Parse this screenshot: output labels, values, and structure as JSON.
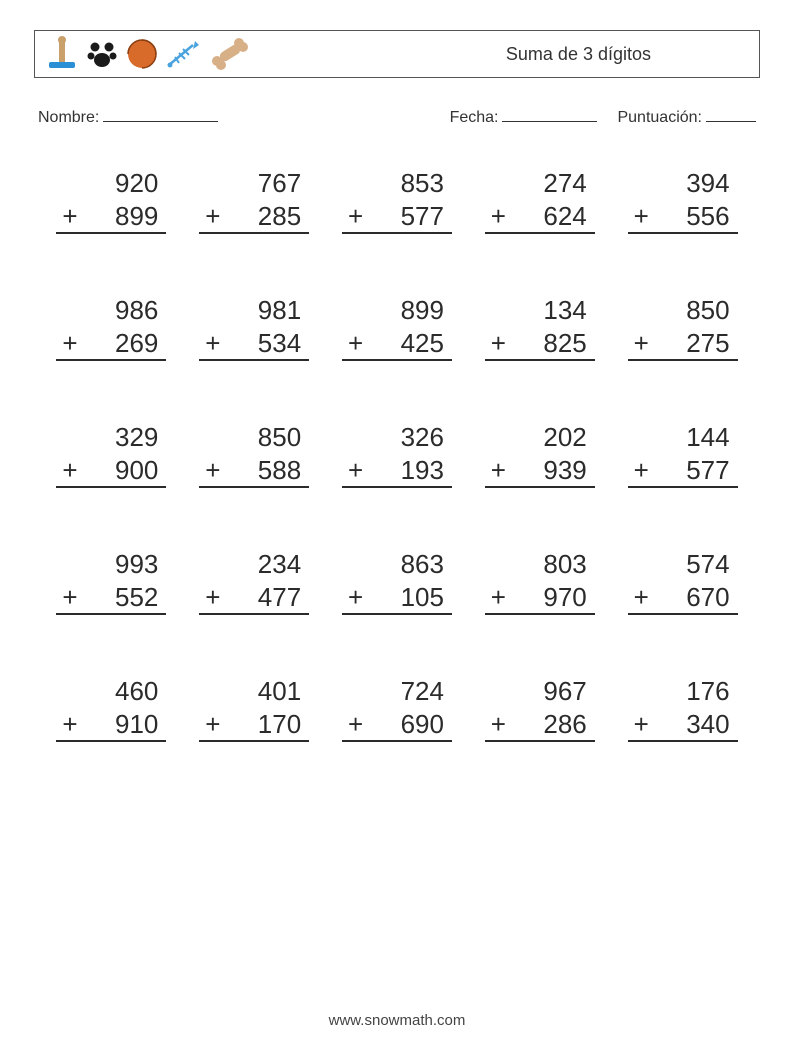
{
  "header": {
    "title": "Suma de 3 dígitos",
    "icon_colors": {
      "base_blue": "#2a8fd4",
      "paw_dark": "#1b1b1b",
      "ball_orange": "#d86a2a",
      "fish_blue": "#4aa3de",
      "bone_tan": "#d8b088"
    }
  },
  "info": {
    "name_label": "Nombre:",
    "date_label": "Fecha:",
    "score_label": "Puntuación:"
  },
  "worksheet": {
    "type": "math-worksheet",
    "operator": "+",
    "columns": 5,
    "rows": 5,
    "font_size": 26,
    "text_color": "#2b2b2b",
    "underline_color": "#2b2b2b",
    "problems": [
      {
        "a": 920,
        "b": 899
      },
      {
        "a": 767,
        "b": 285
      },
      {
        "a": 853,
        "b": 577
      },
      {
        "a": 274,
        "b": 624
      },
      {
        "a": 394,
        "b": 556
      },
      {
        "a": 986,
        "b": 269
      },
      {
        "a": 981,
        "b": 534
      },
      {
        "a": 899,
        "b": 425
      },
      {
        "a": 134,
        "b": 825
      },
      {
        "a": 850,
        "b": 275
      },
      {
        "a": 329,
        "b": 900
      },
      {
        "a": 850,
        "b": 588
      },
      {
        "a": 326,
        "b": 193
      },
      {
        "a": 202,
        "b": 939
      },
      {
        "a": 144,
        "b": 577
      },
      {
        "a": 993,
        "b": 552
      },
      {
        "a": 234,
        "b": 477
      },
      {
        "a": 863,
        "b": 105
      },
      {
        "a": 803,
        "b": 970
      },
      {
        "a": 574,
        "b": 670
      },
      {
        "a": 460,
        "b": 910
      },
      {
        "a": 401,
        "b": 170
      },
      {
        "a": 724,
        "b": 690
      },
      {
        "a": 967,
        "b": 286
      },
      {
        "a": 176,
        "b": 340
      }
    ]
  },
  "footer": {
    "url": "www.snowmath.com"
  }
}
